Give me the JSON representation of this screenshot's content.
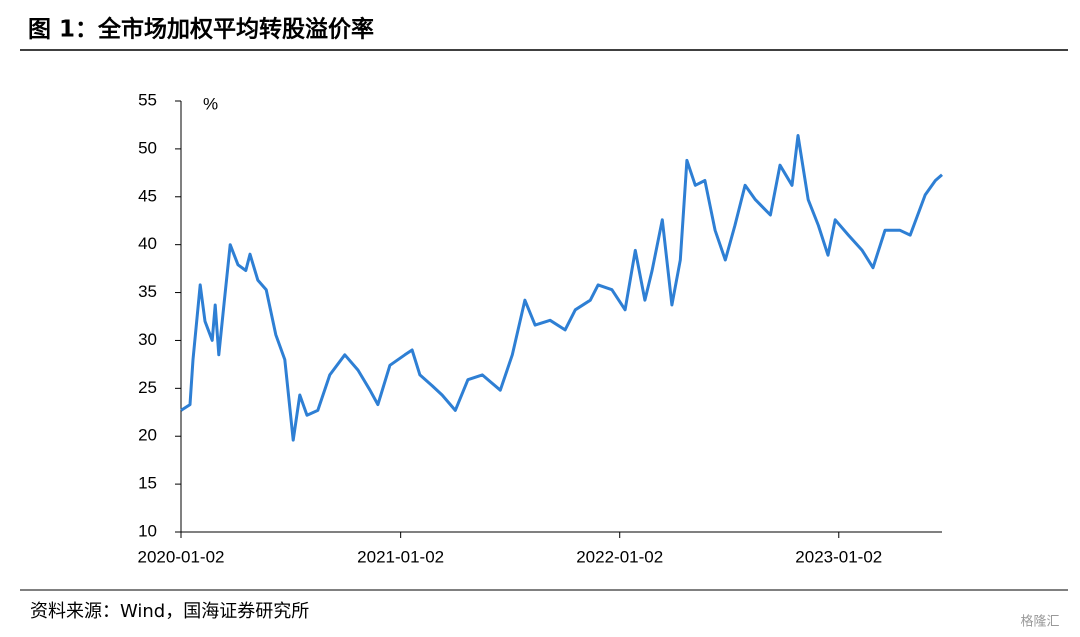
{
  "chart_data": {
    "type": "line",
    "title": "图 1：全市场加权平均转股溢价率",
    "y_unit": "%",
    "source": "资料来源：Wind，国海证券研究所",
    "watermark": "格隆汇",
    "x": [
      "2020-01-02",
      "2020-01-17",
      "2020-01-22",
      "2020-02-03",
      "2020-02-11",
      "2020-02-23",
      "2020-02-28",
      "2020-03-05",
      "2020-03-14",
      "2020-03-24",
      "2020-04-06",
      "2020-04-19",
      "2020-04-26",
      "2020-05-09",
      "2020-05-23",
      "2020-06-08",
      "2020-06-23",
      "2020-07-07",
      "2020-07-18",
      "2020-07-30",
      "2020-08-17",
      "2020-09-06",
      "2020-10-01",
      "2020-10-23",
      "2020-11-12",
      "2020-11-25",
      "2020-12-15",
      "2021-01-09",
      "2021-01-21",
      "2021-02-03",
      "2021-02-23",
      "2021-03-12",
      "2021-04-03",
      "2021-04-24",
      "2021-05-18",
      "2021-06-17",
      "2021-07-07",
      "2021-07-28",
      "2021-08-14",
      "2021-09-08",
      "2021-10-03",
      "2021-10-20",
      "2021-11-14",
      "2021-11-27",
      "2021-12-20",
      "2022-01-11",
      "2022-01-28",
      "2022-02-13",
      "2022-02-25",
      "2022-03-14",
      "2022-03-30",
      "2022-04-13",
      "2022-04-24",
      "2022-05-08",
      "2022-05-24",
      "2022-06-10",
      "2022-06-27",
      "2022-07-13",
      "2022-07-30",
      "2022-08-16",
      "2022-09-10",
      "2022-09-26",
      "2022-10-16",
      "2022-10-26",
      "2022-11-12",
      "2022-11-29",
      "2022-12-15",
      "2022-12-27",
      "2023-01-18",
      "2023-02-10",
      "2023-02-28",
      "2023-03-20",
      "2023-04-14",
      "2023-05-01",
      "2023-05-26",
      "2023-06-12",
      "2023-06-23"
    ],
    "values": [
      22.7,
      23.3,
      28,
      35.8,
      32,
      30,
      33.7,
      28.5,
      34,
      40,
      37.9,
      37.3,
      39,
      36.3,
      35.3,
      30.6,
      28,
      19.6,
      24.3,
      22.2,
      22.7,
      26.4,
      28.5,
      26.9,
      24.8,
      23.3,
      27.4,
      28.5,
      29,
      26.4,
      25.3,
      24.3,
      22.7,
      25.9,
      26.4,
      24.8,
      28.5,
      34.2,
      31.6,
      32.1,
      31.1,
      33.2,
      34.2,
      35.8,
      35.3,
      33.2,
      39.4,
      34.2,
      37.3,
      42.6,
      33.7,
      38.4,
      48.8,
      46.2,
      46.7,
      41.5,
      38.4,
      42,
      46.2,
      44.7,
      43.1,
      48.3,
      46.2,
      51.4,
      44.7,
      42,
      38.9,
      42.6,
      41,
      39.4,
      37.6,
      41.5,
      41.5,
      41,
      45.2,
      46.7,
      47.3
    ],
    "color": "#2e7fd4",
    "xlim": [
      "2020-01-02",
      "2023-06-23"
    ],
    "xticks": [
      "2020-01-02",
      "2021-01-02",
      "2022-01-02",
      "2023-01-02"
    ],
    "ylim": [
      10,
      55
    ],
    "yticks": [
      10,
      15,
      20,
      25,
      30,
      35,
      40,
      45,
      50,
      55
    ]
  }
}
